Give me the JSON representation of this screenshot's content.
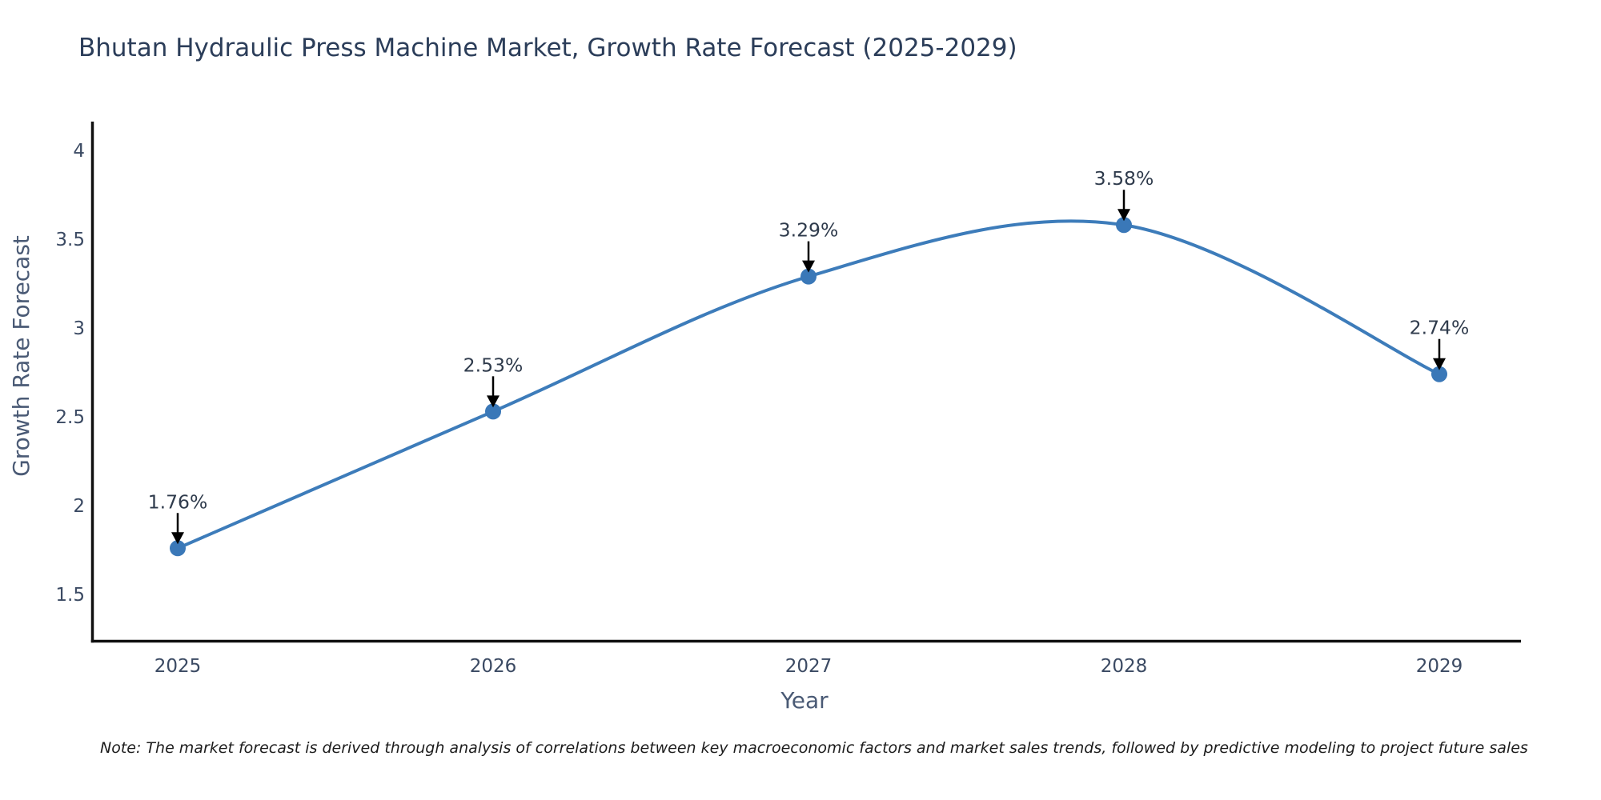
{
  "title": "Bhutan Hydraulic Press Machine Market, Growth Rate Forecast (2025-2029)",
  "note": "Note: The market forecast is derived through analysis of correlations between key macroeconomic factors and market sales trends, followed by predictive modeling to project future sales",
  "chart_data": {
    "type": "line",
    "title": "Bhutan Hydraulic Press Machine Market, Growth Rate Forecast (2025-2029)",
    "xlabel": "Year",
    "ylabel": "Growth Rate Forecast",
    "categories": [
      "2025",
      "2026",
      "2027",
      "2028",
      "2029"
    ],
    "values": [
      1.76,
      2.53,
      3.29,
      3.58,
      2.74
    ],
    "point_labels": [
      "1.76%",
      "2.53%",
      "3.29%",
      "3.58%",
      "2.74%"
    ],
    "unit": "%",
    "yticks": [
      1.5,
      2,
      2.5,
      3,
      3.5,
      4
    ],
    "ylim": [
      1.25,
      4.15
    ],
    "line_shape": "spline",
    "grid": false,
    "legend": "none",
    "annotations": "value labels with downward arrows above each data point",
    "colors": {
      "line": "#3d7cba",
      "marker": "#3a78b8",
      "title_text": "#2b3d59",
      "tick_text": "#3b4a63",
      "axis_label_text": "#4a5a75",
      "annotation_text": "#2f3b4c",
      "axis_line": "#101010",
      "arrow": "#000000",
      "background": "#ffffff"
    }
  }
}
